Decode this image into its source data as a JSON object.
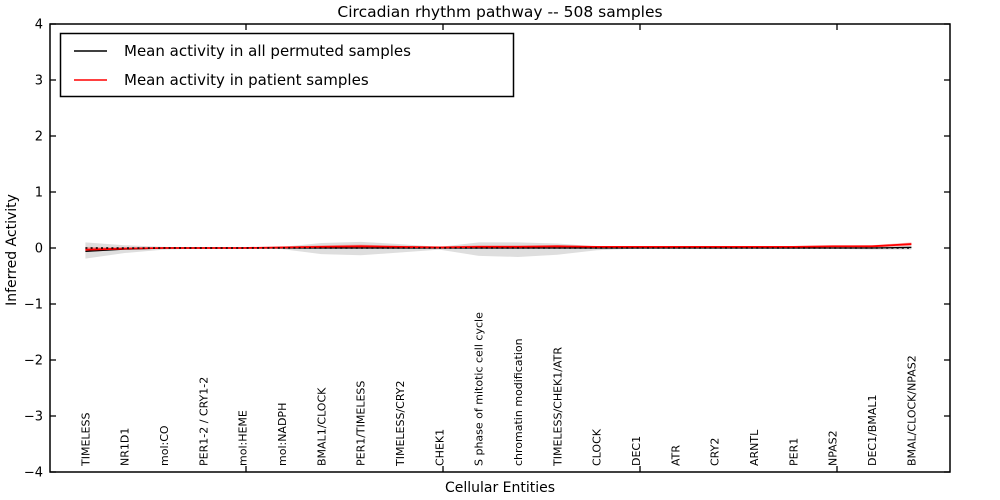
{
  "title": "Circadian rhythm pathway -- 508 samples",
  "chart_data": {
    "type": "line",
    "title": "Circadian rhythm pathway -- 508 samples",
    "xlabel": "Cellular Entities",
    "ylabel": "Inferred Activity",
    "ylim": [
      -4,
      4
    ],
    "yticks": [
      4,
      3,
      2,
      1,
      0,
      -1,
      -2,
      -3,
      -4
    ],
    "ytick_labels": [
      "4",
      "3",
      "2",
      "1",
      "0",
      "−1",
      "−2",
      "−3",
      "−4"
    ],
    "grid": false,
    "legend_position": "upper left",
    "categories": [
      "TIMELESS",
      "NR1D1",
      "mol:CO",
      "PER1-2 / CRY1-2",
      "mol:HEME",
      "mol:NADPH",
      "BMAL1/CLOCK",
      "PER1/TIMELESS",
      "TIMELESS/CRY2",
      "CHEK1",
      "S phase of mitotic cell cycle",
      "chromatin modification",
      "TIMELESS/CHEK1/ATR",
      "CLOCK",
      "DEC1",
      "ATR",
      "CRY2",
      "ARNTL",
      "PER1",
      "NPAS2",
      "DEC1/BMAL1",
      "BMAL/CLOCK/NPAS2"
    ],
    "series": [
      {
        "name": "Mean activity in all permuted samples",
        "color": "#000000",
        "style": "solid",
        "values": [
          -0.06,
          -0.02,
          0,
          0,
          0,
          0,
          0,
          0,
          0,
          0,
          0,
          0,
          0,
          0,
          0,
          0,
          0,
          0,
          0,
          0,
          0,
          0.01
        ]
      },
      {
        "name": "Mean activity in patient samples",
        "color": "#ff0000",
        "style": "solid",
        "values": [
          -0.03,
          -0.01,
          0,
          0,
          0,
          0.01,
          0.02,
          0.03,
          0.02,
          0.01,
          0.02,
          0.02,
          0.03,
          0.02,
          0.02,
          0.02,
          0.02,
          0.02,
          0.02,
          0.03,
          0.03,
          0.07
        ]
      }
    ],
    "bands": [
      {
        "name": "permuted-samples-range",
        "color": "#000000",
        "opacity": 0.13,
        "upper": [
          0.1,
          0.05,
          0.02,
          0.01,
          0.01,
          0.02,
          0.09,
          0.11,
          0.07,
          0.02,
          0.1,
          0.1,
          0.08,
          0.03,
          0.01,
          0.01,
          0.01,
          0.01,
          0.015,
          0.015,
          0.02,
          0.04
        ],
        "lower": [
          -0.19,
          -0.09,
          -0.03,
          -0.01,
          -0.01,
          -0.02,
          -0.11,
          -0.13,
          -0.08,
          -0.03,
          -0.14,
          -0.16,
          -0.12,
          -0.04,
          -0.01,
          -0.01,
          -0.01,
          -0.01,
          -0.015,
          -0.015,
          -0.03,
          -0.03
        ]
      },
      {
        "name": "patient-samples-range",
        "color": "#ff0000",
        "opacity": 0.25,
        "upper": [
          0.02,
          0.01,
          0.01,
          0.01,
          0.01,
          0.02,
          0.05,
          0.06,
          0.04,
          0.02,
          0.05,
          0.05,
          0.05,
          0.03,
          0.03,
          0.03,
          0.03,
          0.03,
          0.035,
          0.04,
          0.05,
          0.1
        ],
        "lower": [
          -0.07,
          -0.03,
          -0.01,
          -0.01,
          -0.01,
          0,
          -0.01,
          0,
          -0.005,
          0,
          -0.01,
          -0.01,
          0,
          0.005,
          0.01,
          0.01,
          0.01,
          0.01,
          0.01,
          0.015,
          0.01,
          0.04
        ]
      }
    ],
    "reference_line": {
      "y": 0,
      "style": "dotted",
      "color": "#000000"
    }
  },
  "legend": {
    "items": [
      {
        "label": "Mean activity in all permuted samples",
        "color": "#000000"
      },
      {
        "label": "Mean activity in patient samples",
        "color": "#ff0000"
      }
    ]
  },
  "colors": {
    "background": "#ffffff",
    "spine": "#000000",
    "permuted_line": "#000000",
    "patient_line": "#ff0000"
  }
}
